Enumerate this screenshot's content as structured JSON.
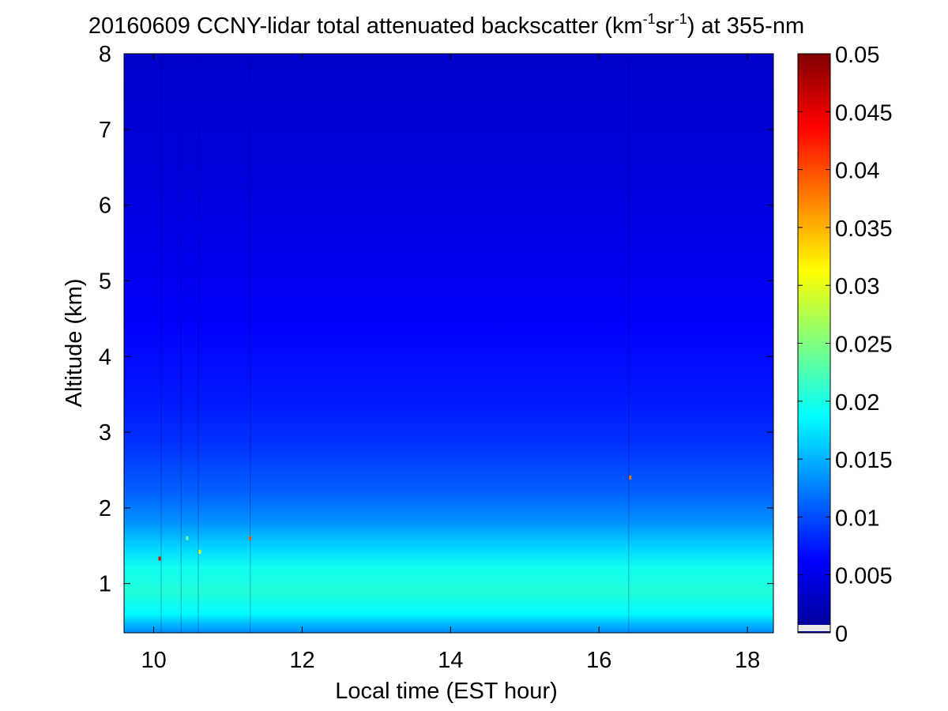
{
  "chart_data": {
    "type": "heatmap",
    "title_main": "20160609 CCNY-lidar total attenuated backscatter (km",
    "title_sup1": "-1",
    "title_mid": "sr",
    "title_sup2": "-1",
    "title_end": ") at 355-nm",
    "xlabel": "Local time (EST hour)",
    "ylabel": "Altitude (km)",
    "xlim": [
      9.6,
      18.35
    ],
    "ylim": [
      0.35,
      8
    ],
    "x_ticks": [
      10,
      12,
      14,
      16,
      18
    ],
    "y_ticks": [
      1,
      2,
      3,
      4,
      5,
      6,
      7,
      8
    ],
    "colorbar": {
      "colormap": "jet",
      "range": [
        0,
        0.05
      ],
      "ticks": [
        0,
        0.005,
        0.01,
        0.015,
        0.02,
        0.025,
        0.03,
        0.035,
        0.04,
        0.045,
        0.05
      ],
      "tick_labels": [
        "0",
        "0.005",
        "0.01",
        "0.015",
        "0.02",
        "0.025",
        "0.03",
        "0.035",
        "0.04",
        "0.045",
        "0.05"
      ]
    },
    "altitude_profile": [
      {
        "alt": 0.35,
        "value": 0.013
      },
      {
        "alt": 0.45,
        "value": 0.015
      },
      {
        "alt": 0.6,
        "value": 0.0185
      },
      {
        "alt": 0.9,
        "value": 0.0205
      },
      {
        "alt": 1.2,
        "value": 0.0195
      },
      {
        "alt": 1.5,
        "value": 0.0165
      },
      {
        "alt": 1.8,
        "value": 0.0135
      },
      {
        "alt": 2.2,
        "value": 0.011
      },
      {
        "alt": 2.8,
        "value": 0.0088
      },
      {
        "alt": 3.5,
        "value": 0.0073
      },
      {
        "alt": 4.5,
        "value": 0.006
      },
      {
        "alt": 6.0,
        "value": 0.0048
      },
      {
        "alt": 8.0,
        "value": 0.0038
      }
    ],
    "vertical_streaks_hour": [
      10.1,
      10.37,
      10.6,
      11.3,
      16.4
    ],
    "hot_spots": [
      {
        "x": 10.08,
        "y": 1.33,
        "value": 0.045
      },
      {
        "x": 10.45,
        "y": 1.6,
        "value": 0.024
      },
      {
        "x": 10.62,
        "y": 1.42,
        "value": 0.03
      },
      {
        "x": 11.3,
        "y": 1.6,
        "value": 0.04
      },
      {
        "x": 16.42,
        "y": 2.4,
        "value": 0.038
      }
    ]
  }
}
